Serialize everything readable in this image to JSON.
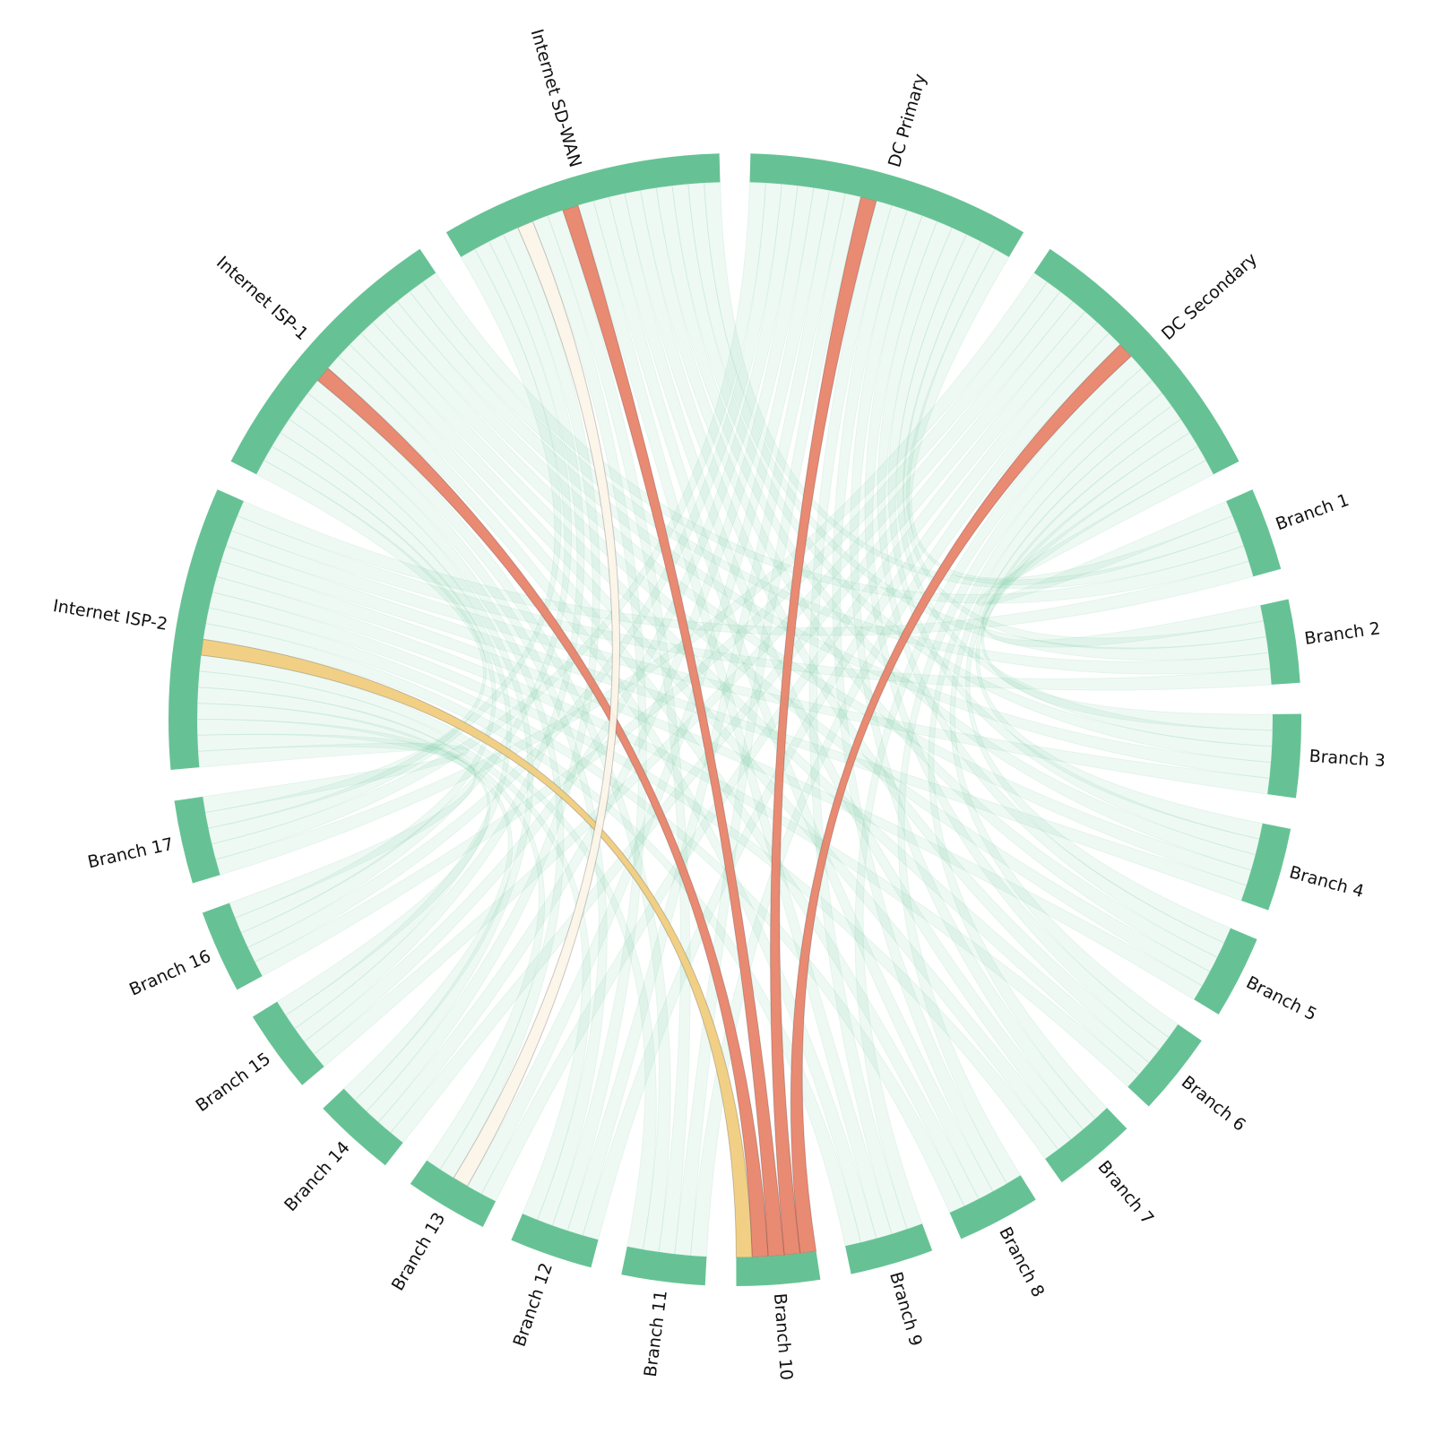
{
  "chart_data": {
    "type": "chord",
    "node_color": "#66c295",
    "link_color": "#66c295",
    "nodes": [
      "DC Primary",
      "DC Secondary",
      "Branch 1",
      "Branch 2",
      "Branch 3",
      "Branch 4",
      "Branch 5",
      "Branch 6",
      "Branch 7",
      "Branch 8",
      "Branch 9",
      "Branch 10",
      "Branch 11",
      "Branch 12",
      "Branch 13",
      "Branch 14",
      "Branch 15",
      "Branch 16",
      "Branch 17",
      "Internet ISP-2",
      "Internet ISP-1",
      "Internet SD-WAN"
    ],
    "links": [
      {
        "source": "DC Primary",
        "target": "Branch 1",
        "value": 1
      },
      {
        "source": "DC Primary",
        "target": "Branch 2",
        "value": 1
      },
      {
        "source": "DC Primary",
        "target": "Branch 3",
        "value": 1
      },
      {
        "source": "DC Primary",
        "target": "Branch 4",
        "value": 1
      },
      {
        "source": "DC Primary",
        "target": "Branch 5",
        "value": 1
      },
      {
        "source": "DC Primary",
        "target": "Branch 6",
        "value": 1
      },
      {
        "source": "DC Primary",
        "target": "Branch 7",
        "value": 1
      },
      {
        "source": "DC Primary",
        "target": "Branch 8",
        "value": 1
      },
      {
        "source": "DC Primary",
        "target": "Branch 9",
        "value": 1
      },
      {
        "source": "DC Primary",
        "target": "Branch 10",
        "value": 1,
        "color": "#e8846c"
      },
      {
        "source": "DC Primary",
        "target": "Branch 11",
        "value": 1
      },
      {
        "source": "DC Primary",
        "target": "Branch 12",
        "value": 1
      },
      {
        "source": "DC Primary",
        "target": "Branch 13",
        "value": 1
      },
      {
        "source": "DC Primary",
        "target": "Branch 14",
        "value": 1
      },
      {
        "source": "DC Primary",
        "target": "Branch 15",
        "value": 1
      },
      {
        "source": "DC Primary",
        "target": "Branch 16",
        "value": 1
      },
      {
        "source": "DC Primary",
        "target": "Branch 17",
        "value": 1
      },
      {
        "source": "DC Secondary",
        "target": "Branch 1",
        "value": 1
      },
      {
        "source": "DC Secondary",
        "target": "Branch 2",
        "value": 1
      },
      {
        "source": "DC Secondary",
        "target": "Branch 3",
        "value": 1
      },
      {
        "source": "DC Secondary",
        "target": "Branch 4",
        "value": 1
      },
      {
        "source": "DC Secondary",
        "target": "Branch 5",
        "value": 1
      },
      {
        "source": "DC Secondary",
        "target": "Branch 6",
        "value": 1
      },
      {
        "source": "DC Secondary",
        "target": "Branch 7",
        "value": 1
      },
      {
        "source": "DC Secondary",
        "target": "Branch 8",
        "value": 1
      },
      {
        "source": "DC Secondary",
        "target": "Branch 9",
        "value": 1
      },
      {
        "source": "DC Secondary",
        "target": "Branch 10",
        "value": 1,
        "color": "#e8846c"
      },
      {
        "source": "DC Secondary",
        "target": "Branch 11",
        "value": 1
      },
      {
        "source": "DC Secondary",
        "target": "Branch 12",
        "value": 1
      },
      {
        "source": "DC Secondary",
        "target": "Branch 13",
        "value": 1
      },
      {
        "source": "DC Secondary",
        "target": "Branch 14",
        "value": 1
      },
      {
        "source": "DC Secondary",
        "target": "Branch 15",
        "value": 1
      },
      {
        "source": "DC Secondary",
        "target": "Branch 16",
        "value": 1
      },
      {
        "source": "DC Secondary",
        "target": "Branch 17",
        "value": 1
      },
      {
        "source": "Internet ISP-2",
        "target": "Branch 1",
        "value": 1
      },
      {
        "source": "Internet ISP-2",
        "target": "Branch 2",
        "value": 1
      },
      {
        "source": "Internet ISP-2",
        "target": "Branch 3",
        "value": 1
      },
      {
        "source": "Internet ISP-2",
        "target": "Branch 4",
        "value": 1
      },
      {
        "source": "Internet ISP-2",
        "target": "Branch 5",
        "value": 1
      },
      {
        "source": "Internet ISP-2",
        "target": "Branch 6",
        "value": 1
      },
      {
        "source": "Internet ISP-2",
        "target": "Branch 7",
        "value": 1
      },
      {
        "source": "Internet ISP-2",
        "target": "Branch 8",
        "value": 1
      },
      {
        "source": "Internet ISP-2",
        "target": "Branch 9",
        "value": 1
      },
      {
        "source": "Internet ISP-2",
        "target": "Branch 10",
        "value": 1,
        "color": "#f0cd80"
      },
      {
        "source": "Internet ISP-2",
        "target": "Branch 11",
        "value": 1
      },
      {
        "source": "Internet ISP-2",
        "target": "Branch 12",
        "value": 1
      },
      {
        "source": "Internet ISP-2",
        "target": "Branch 13",
        "value": 1
      },
      {
        "source": "Internet ISP-2",
        "target": "Branch 14",
        "value": 1
      },
      {
        "source": "Internet ISP-2",
        "target": "Branch 15",
        "value": 1
      },
      {
        "source": "Internet ISP-2",
        "target": "Branch 16",
        "value": 1
      },
      {
        "source": "Internet ISP-2",
        "target": "Branch 17",
        "value": 1
      },
      {
        "source": "Internet ISP-1",
        "target": "Branch 1",
        "value": 1
      },
      {
        "source": "Internet ISP-1",
        "target": "Branch 2",
        "value": 1
      },
      {
        "source": "Internet ISP-1",
        "target": "Branch 3",
        "value": 1
      },
      {
        "source": "Internet ISP-1",
        "target": "Branch 4",
        "value": 1
      },
      {
        "source": "Internet ISP-1",
        "target": "Branch 5",
        "value": 1
      },
      {
        "source": "Internet ISP-1",
        "target": "Branch 6",
        "value": 1
      },
      {
        "source": "Internet ISP-1",
        "target": "Branch 7",
        "value": 1
      },
      {
        "source": "Internet ISP-1",
        "target": "Branch 8",
        "value": 1
      },
      {
        "source": "Internet ISP-1",
        "target": "Branch 9",
        "value": 1
      },
      {
        "source": "Internet ISP-1",
        "target": "Branch 10",
        "value": 1,
        "color": "#e8846c"
      },
      {
        "source": "Internet ISP-1",
        "target": "Branch 11",
        "value": 1
      },
      {
        "source": "Internet ISP-1",
        "target": "Branch 12",
        "value": 1
      },
      {
        "source": "Internet ISP-1",
        "target": "Branch 13",
        "value": 1
      },
      {
        "source": "Internet ISP-1",
        "target": "Branch 14",
        "value": 1
      },
      {
        "source": "Internet ISP-1",
        "target": "Branch 15",
        "value": 1
      },
      {
        "source": "Internet ISP-1",
        "target": "Branch 16",
        "value": 1
      },
      {
        "source": "Internet ISP-1",
        "target": "Branch 17",
        "value": 1
      },
      {
        "source": "Internet SD-WAN",
        "target": "Branch 1",
        "value": 1
      },
      {
        "source": "Internet SD-WAN",
        "target": "Branch 2",
        "value": 1
      },
      {
        "source": "Internet SD-WAN",
        "target": "Branch 3",
        "value": 1
      },
      {
        "source": "Internet SD-WAN",
        "target": "Branch 4",
        "value": 1
      },
      {
        "source": "Internet SD-WAN",
        "target": "Branch 5",
        "value": 1
      },
      {
        "source": "Internet SD-WAN",
        "target": "Branch 6",
        "value": 1
      },
      {
        "source": "Internet SD-WAN",
        "target": "Branch 7",
        "value": 1
      },
      {
        "source": "Internet SD-WAN",
        "target": "Branch 8",
        "value": 1
      },
      {
        "source": "Internet SD-WAN",
        "target": "Branch 9",
        "value": 1
      },
      {
        "source": "Internet SD-WAN",
        "target": "Branch 10",
        "value": 1,
        "color": "#e8846c"
      },
      {
        "source": "Internet SD-WAN",
        "target": "Branch 11",
        "value": 1
      },
      {
        "source": "Internet SD-WAN",
        "target": "Branch 12",
        "value": 1
      },
      {
        "source": "Internet SD-WAN",
        "target": "Branch 13",
        "value": 1,
        "color": "#fcf4e8"
      },
      {
        "source": "Internet SD-WAN",
        "target": "Branch 14",
        "value": 1
      },
      {
        "source": "Internet SD-WAN",
        "target": "Branch 15",
        "value": 1
      },
      {
        "source": "Internet SD-WAN",
        "target": "Branch 16",
        "value": 1
      },
      {
        "source": "Internet SD-WAN",
        "target": "Branch 17",
        "value": 1
      }
    ]
  }
}
